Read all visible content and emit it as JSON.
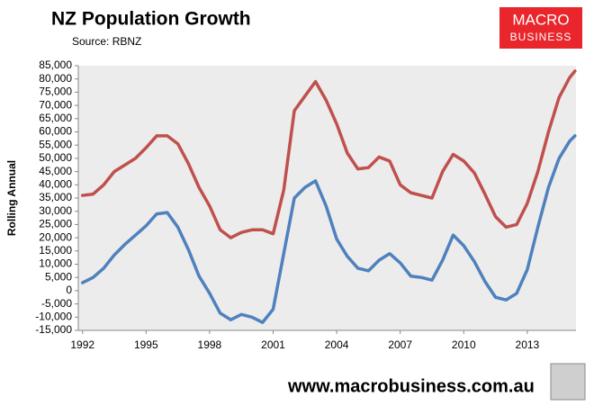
{
  "chart_data": {
    "type": "line",
    "title": "NZ Population Growth",
    "subtitle": "Source: RBNZ",
    "y_label": "Rolling Annual",
    "brand": [
      "MACRO",
      "BUSINESS"
    ],
    "footer": "www.macrobusiness.com.au",
    "x": [
      1992,
      1992.5,
      1993,
      1993.5,
      1994,
      1994.5,
      1995,
      1995.5,
      1996,
      1996.5,
      1997,
      1997.5,
      1998,
      1998.5,
      1999,
      1999.5,
      2000,
      2000.5,
      2001,
      2001.5,
      2002,
      2002.5,
      2003,
      2003.5,
      2004,
      2004.5,
      2005,
      2005.5,
      2006,
      2006.5,
      2007,
      2007.5,
      2008,
      2008.5,
      2009,
      2009.5,
      2010,
      2010.5,
      2011,
      2011.5,
      2012,
      2012.5,
      2013,
      2013.5,
      2014,
      2014.5,
      2015,
      2015.25
    ],
    "series": [
      {
        "color": "#c0504d",
        "values": [
          36000,
          36500,
          40000,
          45000,
          47500,
          50000,
          54000,
          58500,
          58500,
          55500,
          48000,
          39000,
          32000,
          23000,
          20000,
          22000,
          23000,
          23000,
          21500,
          38000,
          68000,
          73500,
          79000,
          72000,
          63000,
          52000,
          46000,
          46500,
          50500,
          49000,
          40000,
          37000,
          36000,
          35000,
          45000,
          51500,
          49000,
          44500,
          36500,
          28000,
          24000,
          25000,
          33000,
          45000,
          60000,
          73000,
          80500,
          83000
        ]
      },
      {
        "color": "#4f81bd",
        "values": [
          3000,
          5000,
          8500,
          13500,
          17500,
          21000,
          24500,
          29000,
          29500,
          24000,
          15500,
          5500,
          -1000,
          -8500,
          -11000,
          -9000,
          -10000,
          -12000,
          -7000,
          14000,
          35000,
          39000,
          41500,
          32000,
          19500,
          13000,
          8500,
          7500,
          11500,
          14000,
          10500,
          5500,
          5000,
          4000,
          11500,
          21000,
          17000,
          11000,
          3500,
          -2500,
          -3500,
          -1000,
          8000,
          24000,
          39000,
          50000,
          56500,
          58500
        ]
      }
    ],
    "xlim": [
      1991.8,
      2015.3
    ],
    "xticks": [
      1992,
      1995,
      1998,
      2001,
      2004,
      2007,
      2010,
      2013
    ],
    "ylim": [
      -15000,
      85000
    ],
    "yticks": [
      {
        "value": -15000,
        "label": "-15,000"
      },
      {
        "value": -10000,
        "label": "-10,000"
      },
      {
        "value": -5000,
        "label": "-5,000"
      },
      0,
      {
        "value": 5000,
        "label": "5,000"
      },
      {
        "value": 10000,
        "label": "10,000"
      },
      {
        "value": 15000,
        "label": "15,000"
      },
      {
        "value": 20000,
        "label": "20,000"
      },
      {
        "value": 25000,
        "label": "25,000"
      },
      {
        "value": 30000,
        "label": "30,000"
      },
      {
        "value": 35000,
        "label": "35,000"
      },
      {
        "value": 40000,
        "label": "40,000"
      },
      {
        "value": 45000,
        "label": "45,000"
      },
      {
        "value": 50000,
        "label": "50,000"
      },
      {
        "value": 55000,
        "label": "55,000"
      },
      {
        "value": 60000,
        "label": "60,000"
      },
      {
        "value": 65000,
        "label": "65,000"
      },
      {
        "value": 70000,
        "label": "70,000"
      },
      {
        "value": 75000,
        "label": "75,000"
      },
      {
        "value": 80000,
        "label": "80,000"
      },
      {
        "value": 85000,
        "label": "85,000"
      }
    ],
    "grid": false
  }
}
